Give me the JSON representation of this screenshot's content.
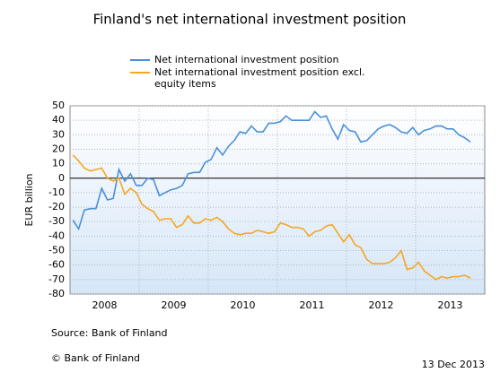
{
  "chart_data": {
    "type": "line",
    "title": "Finland's net international investment position",
    "y_label": "EUR billion",
    "source": "Source: Bank of Finland",
    "copyright": "© Bank of Finland",
    "date": "13 Dec 2013",
    "categories": [
      null,
      null,
      null,
      null,
      null,
      null,
      "2008",
      null,
      null,
      null,
      null,
      null,
      null,
      null,
      null,
      null,
      null,
      null,
      "2009",
      null,
      null,
      null,
      null,
      null,
      null,
      null,
      null,
      null,
      null,
      null,
      "2010",
      null,
      null,
      null,
      null,
      null,
      null,
      null,
      null,
      null,
      null,
      null,
      "2011",
      null,
      null,
      null,
      null,
      null,
      null,
      null,
      null,
      null,
      null,
      null,
      "2012",
      null,
      null,
      null,
      null,
      null,
      null,
      null,
      null,
      null,
      null,
      null,
      "2013",
      null,
      null,
      null
    ],
    "series": [
      {
        "name": "Net international investment position",
        "color": "#4a90d9",
        "values": [
          -29,
          -35,
          -22,
          -21,
          -21,
          -7,
          -15,
          -14,
          6,
          -2,
          3,
          -5,
          -5,
          0,
          -1,
          -12,
          -10,
          -8,
          -7,
          -5,
          3,
          4,
          4,
          11,
          13,
          21,
          16,
          22,
          26,
          32,
          31,
          36,
          32,
          32,
          38,
          38,
          39,
          43,
          40,
          40,
          40,
          40,
          46,
          42,
          43,
          34,
          27,
          37,
          33,
          32,
          25,
          26,
          30,
          34,
          36,
          37,
          35,
          32,
          31,
          35,
          30,
          33,
          34,
          36,
          36,
          34,
          34,
          30,
          28,
          25
        ]
      },
      {
        "name": "Net international investment position excl. equity items",
        "color": "#f5a623",
        "values": [
          16,
          12,
          7,
          5,
          6,
          7,
          0,
          -2,
          0,
          -11,
          -7,
          -10,
          -18,
          -21,
          -23,
          -29,
          -28,
          -28,
          -34,
          -32,
          -26,
          -31,
          -31,
          -28,
          -29,
          -27,
          -30,
          -35,
          -38,
          -39,
          -38,
          -38,
          -36,
          -37,
          -38,
          -37,
          -31,
          -32,
          -34,
          -34,
          -35,
          -40,
          -37,
          -36,
          -33,
          -32,
          -38,
          -44,
          -39,
          -46,
          -48,
          -56,
          -59,
          -59,
          -59,
          -58,
          -55,
          -50,
          -63,
          -62,
          -58,
          -64,
          -67,
          -70,
          -68,
          -69,
          -68,
          -68,
          -67,
          -69
        ]
      }
    ],
    "ylim": [
      -80,
      50
    ],
    "yticks": [
      -80,
      -70,
      -60,
      -50,
      -40,
      -30,
      -20,
      -10,
      0,
      10,
      20,
      30,
      40,
      50
    ],
    "grid": true
  }
}
